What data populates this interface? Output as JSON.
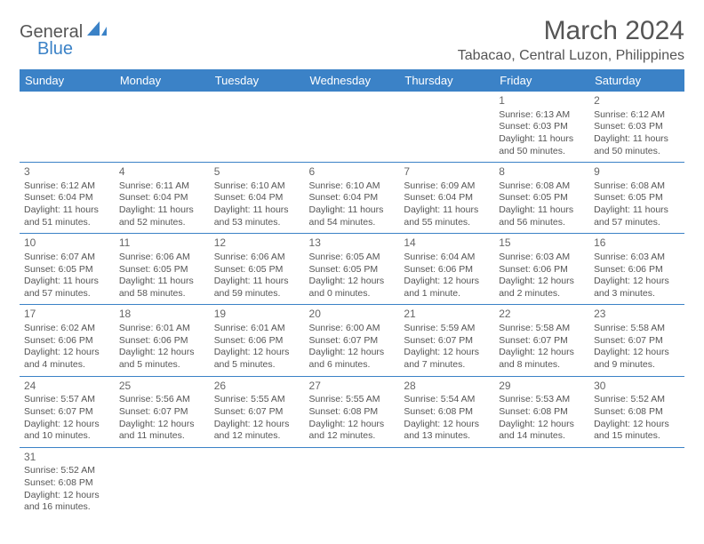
{
  "logo": {
    "text1": "General",
    "text2": "Blue",
    "sail_color": "#3b82c7"
  },
  "title": "March 2024",
  "location": "Tabacao, Central Luzon, Philippines",
  "header_bg": "#3b82c7",
  "header_fg": "#ffffff",
  "border_color": "#3b82c7",
  "weekdays": [
    "Sunday",
    "Monday",
    "Tuesday",
    "Wednesday",
    "Thursday",
    "Friday",
    "Saturday"
  ],
  "weeks": [
    [
      null,
      null,
      null,
      null,
      null,
      {
        "d": "1",
        "sr": "Sunrise: 6:13 AM",
        "ss": "Sunset: 6:03 PM",
        "dl1": "Daylight: 11 hours",
        "dl2": "and 50 minutes."
      },
      {
        "d": "2",
        "sr": "Sunrise: 6:12 AM",
        "ss": "Sunset: 6:03 PM",
        "dl1": "Daylight: 11 hours",
        "dl2": "and 50 minutes."
      }
    ],
    [
      {
        "d": "3",
        "sr": "Sunrise: 6:12 AM",
        "ss": "Sunset: 6:04 PM",
        "dl1": "Daylight: 11 hours",
        "dl2": "and 51 minutes."
      },
      {
        "d": "4",
        "sr": "Sunrise: 6:11 AM",
        "ss": "Sunset: 6:04 PM",
        "dl1": "Daylight: 11 hours",
        "dl2": "and 52 minutes."
      },
      {
        "d": "5",
        "sr": "Sunrise: 6:10 AM",
        "ss": "Sunset: 6:04 PM",
        "dl1": "Daylight: 11 hours",
        "dl2": "and 53 minutes."
      },
      {
        "d": "6",
        "sr": "Sunrise: 6:10 AM",
        "ss": "Sunset: 6:04 PM",
        "dl1": "Daylight: 11 hours",
        "dl2": "and 54 minutes."
      },
      {
        "d": "7",
        "sr": "Sunrise: 6:09 AM",
        "ss": "Sunset: 6:04 PM",
        "dl1": "Daylight: 11 hours",
        "dl2": "and 55 minutes."
      },
      {
        "d": "8",
        "sr": "Sunrise: 6:08 AM",
        "ss": "Sunset: 6:05 PM",
        "dl1": "Daylight: 11 hours",
        "dl2": "and 56 minutes."
      },
      {
        "d": "9",
        "sr": "Sunrise: 6:08 AM",
        "ss": "Sunset: 6:05 PM",
        "dl1": "Daylight: 11 hours",
        "dl2": "and 57 minutes."
      }
    ],
    [
      {
        "d": "10",
        "sr": "Sunrise: 6:07 AM",
        "ss": "Sunset: 6:05 PM",
        "dl1": "Daylight: 11 hours",
        "dl2": "and 57 minutes."
      },
      {
        "d": "11",
        "sr": "Sunrise: 6:06 AM",
        "ss": "Sunset: 6:05 PM",
        "dl1": "Daylight: 11 hours",
        "dl2": "and 58 minutes."
      },
      {
        "d": "12",
        "sr": "Sunrise: 6:06 AM",
        "ss": "Sunset: 6:05 PM",
        "dl1": "Daylight: 11 hours",
        "dl2": "and 59 minutes."
      },
      {
        "d": "13",
        "sr": "Sunrise: 6:05 AM",
        "ss": "Sunset: 6:05 PM",
        "dl1": "Daylight: 12 hours",
        "dl2": "and 0 minutes."
      },
      {
        "d": "14",
        "sr": "Sunrise: 6:04 AM",
        "ss": "Sunset: 6:06 PM",
        "dl1": "Daylight: 12 hours",
        "dl2": "and 1 minute."
      },
      {
        "d": "15",
        "sr": "Sunrise: 6:03 AM",
        "ss": "Sunset: 6:06 PM",
        "dl1": "Daylight: 12 hours",
        "dl2": "and 2 minutes."
      },
      {
        "d": "16",
        "sr": "Sunrise: 6:03 AM",
        "ss": "Sunset: 6:06 PM",
        "dl1": "Daylight: 12 hours",
        "dl2": "and 3 minutes."
      }
    ],
    [
      {
        "d": "17",
        "sr": "Sunrise: 6:02 AM",
        "ss": "Sunset: 6:06 PM",
        "dl1": "Daylight: 12 hours",
        "dl2": "and 4 minutes."
      },
      {
        "d": "18",
        "sr": "Sunrise: 6:01 AM",
        "ss": "Sunset: 6:06 PM",
        "dl1": "Daylight: 12 hours",
        "dl2": "and 5 minutes."
      },
      {
        "d": "19",
        "sr": "Sunrise: 6:01 AM",
        "ss": "Sunset: 6:06 PM",
        "dl1": "Daylight: 12 hours",
        "dl2": "and 5 minutes."
      },
      {
        "d": "20",
        "sr": "Sunrise: 6:00 AM",
        "ss": "Sunset: 6:07 PM",
        "dl1": "Daylight: 12 hours",
        "dl2": "and 6 minutes."
      },
      {
        "d": "21",
        "sr": "Sunrise: 5:59 AM",
        "ss": "Sunset: 6:07 PM",
        "dl1": "Daylight: 12 hours",
        "dl2": "and 7 minutes."
      },
      {
        "d": "22",
        "sr": "Sunrise: 5:58 AM",
        "ss": "Sunset: 6:07 PM",
        "dl1": "Daylight: 12 hours",
        "dl2": "and 8 minutes."
      },
      {
        "d": "23",
        "sr": "Sunrise: 5:58 AM",
        "ss": "Sunset: 6:07 PM",
        "dl1": "Daylight: 12 hours",
        "dl2": "and 9 minutes."
      }
    ],
    [
      {
        "d": "24",
        "sr": "Sunrise: 5:57 AM",
        "ss": "Sunset: 6:07 PM",
        "dl1": "Daylight: 12 hours",
        "dl2": "and 10 minutes."
      },
      {
        "d": "25",
        "sr": "Sunrise: 5:56 AM",
        "ss": "Sunset: 6:07 PM",
        "dl1": "Daylight: 12 hours",
        "dl2": "and 11 minutes."
      },
      {
        "d": "26",
        "sr": "Sunrise: 5:55 AM",
        "ss": "Sunset: 6:07 PM",
        "dl1": "Daylight: 12 hours",
        "dl2": "and 12 minutes."
      },
      {
        "d": "27",
        "sr": "Sunrise: 5:55 AM",
        "ss": "Sunset: 6:08 PM",
        "dl1": "Daylight: 12 hours",
        "dl2": "and 12 minutes."
      },
      {
        "d": "28",
        "sr": "Sunrise: 5:54 AM",
        "ss": "Sunset: 6:08 PM",
        "dl1": "Daylight: 12 hours",
        "dl2": "and 13 minutes."
      },
      {
        "d": "29",
        "sr": "Sunrise: 5:53 AM",
        "ss": "Sunset: 6:08 PM",
        "dl1": "Daylight: 12 hours",
        "dl2": "and 14 minutes."
      },
      {
        "d": "30",
        "sr": "Sunrise: 5:52 AM",
        "ss": "Sunset: 6:08 PM",
        "dl1": "Daylight: 12 hours",
        "dl2": "and 15 minutes."
      }
    ],
    [
      {
        "d": "31",
        "sr": "Sunrise: 5:52 AM",
        "ss": "Sunset: 6:08 PM",
        "dl1": "Daylight: 12 hours",
        "dl2": "and 16 minutes."
      },
      null,
      null,
      null,
      null,
      null,
      null
    ]
  ]
}
